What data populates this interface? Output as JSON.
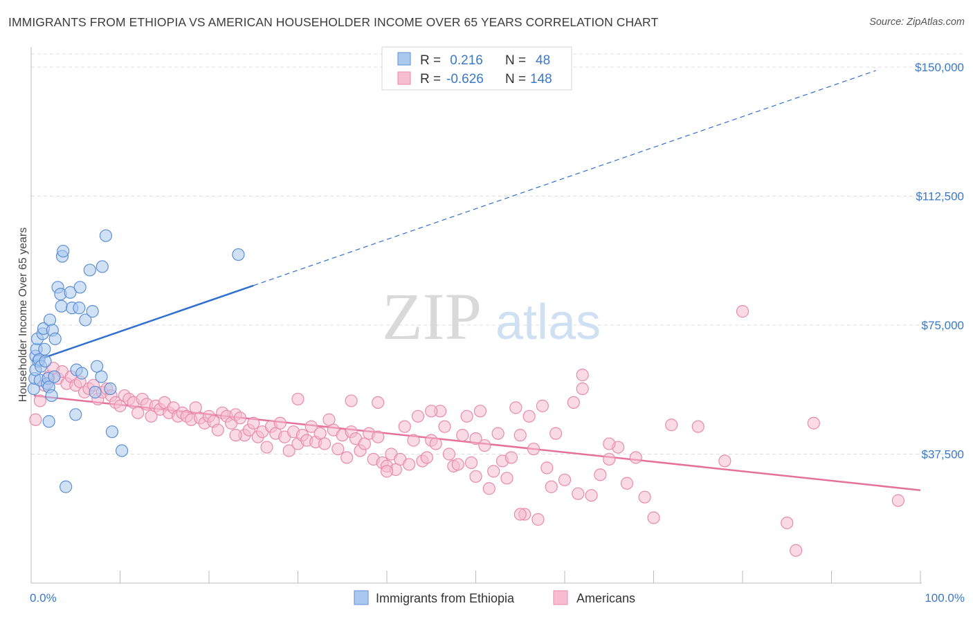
{
  "header": {
    "title": "IMMIGRANTS FROM ETHIOPIA VS AMERICAN HOUSEHOLDER INCOME OVER 65 YEARS CORRELATION CHART",
    "source": "Source: ZipAtlas.com"
  },
  "watermark": {
    "zip": "ZIP",
    "atlas": "atlas"
  },
  "colors": {
    "blue_fill": "#aac8ee",
    "blue_stroke": "#5b8fd6",
    "blue_line": "#2f6fd0",
    "pink_fill": "#f6bcd0",
    "pink_stroke": "#e98aab",
    "pink_line": "#e5709a",
    "grid": "#dddddd",
    "axis_text": "#3a78c8"
  },
  "legend": {
    "rows": [
      {
        "r_label": "R =",
        "r_value": " 0.216",
        "n_label": "N =",
        "n_value": "48"
      },
      {
        "r_label": "R =",
        "r_value": "-0.626",
        "n_label": "N =",
        "n_value": "148"
      }
    ]
  },
  "bottom_legend": [
    {
      "label": "Immigrants from Ethiopia"
    },
    {
      "label": "Americans"
    }
  ],
  "chart_data": {
    "type": "scatter",
    "title": "IMMIGRANTS FROM ETHIOPIA VS AMERICAN HOUSEHOLDER INCOME OVER 65 YEARS CORRELATION CHART",
    "xlabel": "",
    "ylabel": "Householder Income Over 65 years",
    "xlim": [
      0,
      100
    ],
    "ylim": [
      0,
      157500
    ],
    "x_tick_labels": [
      "0.0%",
      "100.0%"
    ],
    "y_ticks": [
      37500,
      75000,
      112500,
      150000
    ],
    "y_tick_labels": [
      "$37,500",
      "$75,000",
      "$112,500",
      "$150,000"
    ],
    "grid": true,
    "legend_position": "top-center",
    "series": [
      {
        "name": "Immigrants from Ethiopia",
        "trend": {
          "x0": 0.3,
          "y0": 64500,
          "x1": 25.0,
          "y1": 86500,
          "dashed_to_x": 95,
          "dashed_to_y": 149000
        },
        "points": [
          [
            0.3,
            56500
          ],
          [
            0.4,
            59500
          ],
          [
            0.5,
            62000
          ],
          [
            0.5,
            66000
          ],
          [
            0.6,
            68000
          ],
          [
            0.7,
            71000
          ],
          [
            0.8,
            64500
          ],
          [
            0.9,
            65000
          ],
          [
            1.0,
            59000
          ],
          [
            1.1,
            63000
          ],
          [
            1.3,
            72500
          ],
          [
            1.4,
            74000
          ],
          [
            1.5,
            68000
          ],
          [
            1.6,
            64500
          ],
          [
            1.8,
            58000
          ],
          [
            1.9,
            59500
          ],
          [
            2.0,
            57000
          ],
          [
            2.1,
            76500
          ],
          [
            2.3,
            54500
          ],
          [
            2.4,
            73500
          ],
          [
            2.6,
            60000
          ],
          [
            2.7,
            71000
          ],
          [
            3.0,
            86000
          ],
          [
            3.3,
            84000
          ],
          [
            3.4,
            80500
          ],
          [
            3.5,
            95000
          ],
          [
            3.6,
            96500
          ],
          [
            4.4,
            84500
          ],
          [
            4.6,
            80000
          ],
          [
            5.0,
            49000
          ],
          [
            5.1,
            62000
          ],
          [
            5.4,
            80000
          ],
          [
            5.5,
            86000
          ],
          [
            5.7,
            61000
          ],
          [
            6.1,
            76500
          ],
          [
            6.6,
            91000
          ],
          [
            6.9,
            79000
          ],
          [
            7.2,
            55500
          ],
          [
            7.4,
            63000
          ],
          [
            7.9,
            60000
          ],
          [
            8.0,
            92000
          ],
          [
            8.4,
            101000
          ],
          [
            8.9,
            56500
          ],
          [
            9.1,
            44000
          ],
          [
            2.0,
            47000
          ],
          [
            3.9,
            28000
          ],
          [
            10.2,
            38500
          ],
          [
            23.3,
            95500
          ]
        ]
      },
      {
        "name": "Americans",
        "trend": {
          "x0": 0.3,
          "y0": 54500,
          "x1": 100.0,
          "y1": 27000
        },
        "points": [
          [
            0.5,
            47500
          ],
          [
            1.0,
            53000
          ],
          [
            1.5,
            57500
          ],
          [
            2.0,
            60000
          ],
          [
            2.5,
            62500
          ],
          [
            3.0,
            59500
          ],
          [
            3.5,
            61500
          ],
          [
            4.0,
            58000
          ],
          [
            4.5,
            60000
          ],
          [
            5.0,
            57500
          ],
          [
            5.5,
            58500
          ],
          [
            6.0,
            55500
          ],
          [
            6.5,
            56500
          ],
          [
            7.0,
            57500
          ],
          [
            7.5,
            53500
          ],
          [
            8.0,
            55500
          ],
          [
            8.5,
            56500
          ],
          [
            9.0,
            54500
          ],
          [
            9.5,
            52500
          ],
          [
            10.0,
            51500
          ],
          [
            10.5,
            54500
          ],
          [
            11.0,
            53500
          ],
          [
            11.5,
            52500
          ],
          [
            12.0,
            49500
          ],
          [
            12.5,
            53500
          ],
          [
            13.0,
            52000
          ],
          [
            13.5,
            48500
          ],
          [
            14.0,
            51500
          ],
          [
            14.5,
            50500
          ],
          [
            15.0,
            52500
          ],
          [
            15.5,
            49500
          ],
          [
            16.0,
            51000
          ],
          [
            16.5,
            48500
          ],
          [
            17.0,
            49500
          ],
          [
            17.5,
            48500
          ],
          [
            18.0,
            47500
          ],
          [
            18.5,
            51000
          ],
          [
            19.0,
            48000
          ],
          [
            19.5,
            46500
          ],
          [
            20.0,
            48500
          ],
          [
            20.5,
            47000
          ],
          [
            21.0,
            44500
          ],
          [
            21.5,
            49500
          ],
          [
            22.0,
            48500
          ],
          [
            22.5,
            46500
          ],
          [
            23.0,
            49000
          ],
          [
            23.5,
            48000
          ],
          [
            24.0,
            43000
          ],
          [
            24.5,
            44500
          ],
          [
            25.0,
            46500
          ],
          [
            25.5,
            42500
          ],
          [
            26.0,
            44000
          ],
          [
            26.5,
            39500
          ],
          [
            27.0,
            45500
          ],
          [
            27.5,
            43500
          ],
          [
            28.0,
            46500
          ],
          [
            28.5,
            42500
          ],
          [
            29.0,
            38500
          ],
          [
            29.5,
            44000
          ],
          [
            30.0,
            40500
          ],
          [
            30.5,
            43000
          ],
          [
            31.0,
            41500
          ],
          [
            31.5,
            45500
          ],
          [
            32.0,
            41000
          ],
          [
            32.5,
            43500
          ],
          [
            33.0,
            40500
          ],
          [
            33.5,
            47500
          ],
          [
            34.0,
            44500
          ],
          [
            34.5,
            39000
          ],
          [
            35.0,
            43000
          ],
          [
            35.5,
            36500
          ],
          [
            36.0,
            44000
          ],
          [
            36.5,
            42000
          ],
          [
            37.0,
            38500
          ],
          [
            37.5,
            40500
          ],
          [
            38.0,
            43500
          ],
          [
            38.5,
            36000
          ],
          [
            39.0,
            42500
          ],
          [
            39.5,
            35000
          ],
          [
            40.0,
            34000
          ],
          [
            40.5,
            37500
          ],
          [
            41.0,
            33000
          ],
          [
            41.5,
            36000
          ],
          [
            42.0,
            45500
          ],
          [
            42.5,
            34500
          ],
          [
            43.0,
            41500
          ],
          [
            43.5,
            48500
          ],
          [
            44.0,
            35500
          ],
          [
            44.5,
            36500
          ],
          [
            45.0,
            41500
          ],
          [
            45.5,
            40500
          ],
          [
            46.0,
            50000
          ],
          [
            46.5,
            45500
          ],
          [
            47.0,
            37500
          ],
          [
            47.5,
            34000
          ],
          [
            48.0,
            34500
          ],
          [
            48.5,
            43000
          ],
          [
            49.0,
            48500
          ],
          [
            49.5,
            35000
          ],
          [
            50.0,
            42000
          ],
          [
            50.5,
            50000
          ],
          [
            51.0,
            40000
          ],
          [
            51.5,
            27500
          ],
          [
            52.0,
            32500
          ],
          [
            52.5,
            43500
          ],
          [
            53.0,
            35500
          ],
          [
            53.5,
            30500
          ],
          [
            54.0,
            36500
          ],
          [
            54.5,
            51000
          ],
          [
            55.0,
            43000
          ],
          [
            55.5,
            20000
          ],
          [
            56.0,
            48500
          ],
          [
            56.5,
            39000
          ],
          [
            57.0,
            18500
          ],
          [
            57.5,
            51500
          ],
          [
            58.0,
            33500
          ],
          [
            58.5,
            28000
          ],
          [
            59.0,
            43500
          ],
          [
            60.0,
            30000
          ],
          [
            61.0,
            52500
          ],
          [
            61.5,
            26000
          ],
          [
            62.0,
            56500
          ],
          [
            64.0,
            31500
          ],
          [
            65.0,
            36000
          ],
          [
            66.0,
            39500
          ],
          [
            67.0,
            29000
          ],
          [
            68.0,
            36500
          ],
          [
            69.0,
            25000
          ],
          [
            70.0,
            19000
          ],
          [
            72.0,
            46000
          ],
          [
            36.0,
            53000
          ],
          [
            39.0,
            52500
          ],
          [
            30.0,
            53500
          ],
          [
            80.0,
            79000
          ],
          [
            62.0,
            60500
          ],
          [
            78.0,
            35500
          ],
          [
            63.0,
            25500
          ],
          [
            85.0,
            17500
          ],
          [
            88.0,
            46500
          ],
          [
            97.5,
            24000
          ],
          [
            86.0,
            9500
          ],
          [
            65.0,
            40500
          ],
          [
            40.0,
            32500
          ],
          [
            55.0,
            20000
          ],
          [
            45.0,
            50000
          ],
          [
            23.0,
            43000
          ],
          [
            50.0,
            31000
          ],
          [
            75.0,
            45500
          ]
        ]
      }
    ]
  }
}
